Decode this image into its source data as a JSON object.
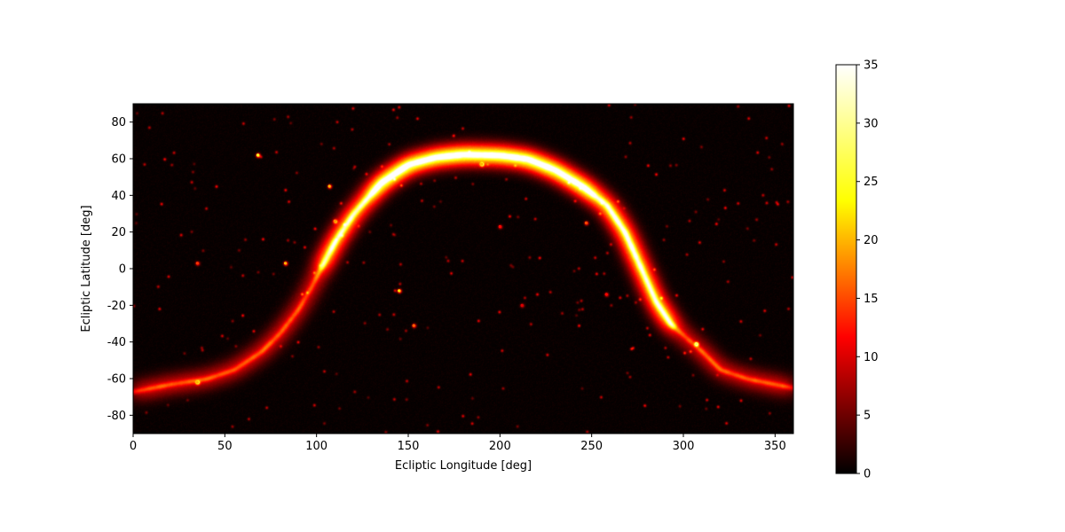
{
  "chart_data": {
    "type": "heatmap",
    "title": "",
    "xlabel": "Ecliptic Longitude [deg]",
    "ylabel": "Ecliptic Latitude [deg]",
    "xlim": [
      0,
      360
    ],
    "ylim": [
      -90,
      90
    ],
    "x_ticks": [
      0,
      50,
      100,
      150,
      200,
      250,
      300,
      350
    ],
    "y_ticks": [
      -80,
      -60,
      -40,
      -20,
      0,
      20,
      40,
      60,
      80
    ],
    "grid": false,
    "colormap": "hot",
    "colorbar": {
      "min": 0,
      "max": 35,
      "ticks": [
        0,
        5,
        10,
        15,
        20,
        25,
        30,
        35
      ],
      "colors": [
        "#000000",
        "#ff0000",
        "#ffff00",
        "#ffffff"
      ]
    },
    "features": [
      {
        "name": "galactic-plane",
        "peak_value": 30,
        "path": [
          [
            0,
            -67
          ],
          [
            20,
            -63
          ],
          [
            40,
            -60
          ],
          [
            55,
            -55
          ],
          [
            70,
            -45
          ],
          [
            80,
            -35
          ],
          [
            90,
            -22
          ],
          [
            97,
            -10
          ],
          [
            102,
            0
          ],
          [
            110,
            15
          ],
          [
            120,
            30
          ],
          [
            135,
            47
          ],
          [
            150,
            57
          ],
          [
            165,
            61
          ],
          [
            180,
            62.5
          ],
          [
            200,
            62
          ],
          [
            215,
            60
          ],
          [
            230,
            54
          ],
          [
            245,
            45
          ],
          [
            258,
            35
          ],
          [
            268,
            20
          ],
          [
            277,
            0
          ],
          [
            285,
            -18
          ],
          [
            293,
            -30
          ],
          [
            302,
            -38
          ],
          [
            310,
            -45
          ],
          [
            320,
            -55
          ],
          [
            335,
            -60
          ],
          [
            350,
            -63
          ],
          [
            360,
            -65
          ]
        ]
      }
    ],
    "hotspots": [
      {
        "lon": 83,
        "lat": 3,
        "value": 20
      },
      {
        "lon": 247,
        "lat": 25,
        "value": 15
      },
      {
        "lon": 307,
        "lat": -41,
        "value": 28
      },
      {
        "lon": 68,
        "lat": 62,
        "value": 25
      },
      {
        "lon": 107,
        "lat": 45,
        "value": 20
      },
      {
        "lon": 110,
        "lat": 26,
        "value": 18
      },
      {
        "lon": 145,
        "lat": -12,
        "value": 22
      },
      {
        "lon": 35,
        "lat": -62,
        "value": 20
      },
      {
        "lon": 153,
        "lat": -31,
        "value": 16
      },
      {
        "lon": 35,
        "lat": 3,
        "value": 14
      },
      {
        "lon": 190,
        "lat": 57,
        "value": 20
      },
      {
        "lon": 200,
        "lat": 23,
        "value": 12
      },
      {
        "lon": 258,
        "lat": -14,
        "value": 12
      },
      {
        "lon": 212,
        "lat": -20,
        "value": 10
      }
    ]
  }
}
